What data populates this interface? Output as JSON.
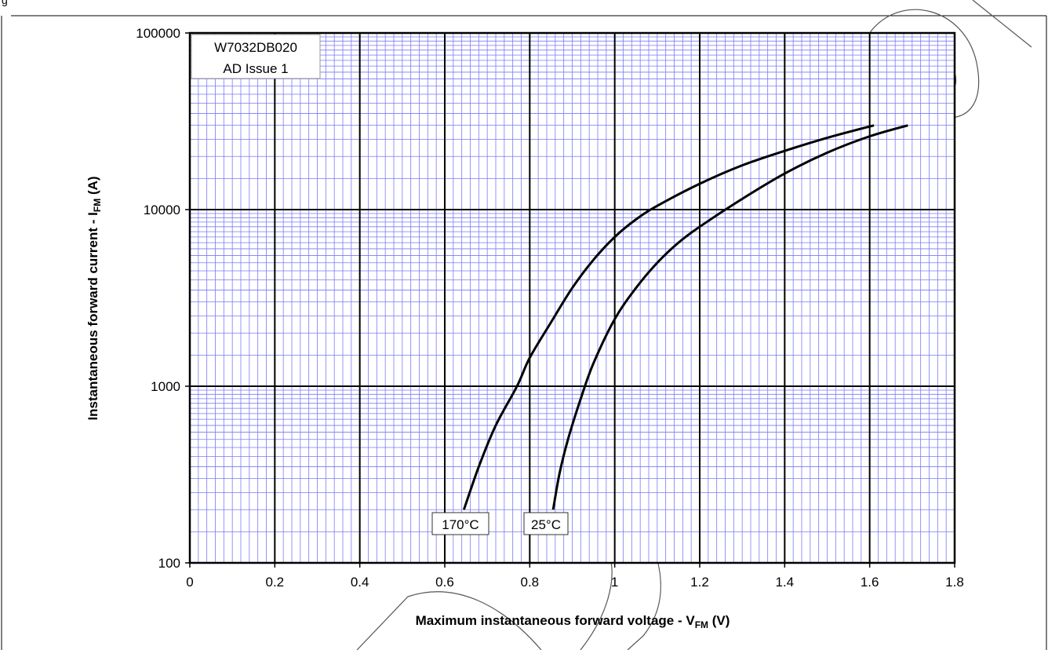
{
  "page": {
    "fragment_text": "g"
  },
  "chart_data": {
    "type": "line",
    "title": "",
    "xlabel": "Maximum instantaneous forward voltage - V",
    "xlabel_sub": "FM",
    "xlabel_unit": " (V)",
    "ylabel": "Instantaneous forward current - I",
    "ylabel_sub": "FM",
    "ylabel_unit": " (A)",
    "xlim": [
      0,
      1.8
    ],
    "ylim": [
      100,
      100000
    ],
    "yscale": "log",
    "grid": true,
    "x_ticks": [
      {
        "value": 0,
        "label": "0"
      },
      {
        "value": 0.2,
        "label": "0.2"
      },
      {
        "value": 0.4,
        "label": "0.4"
      },
      {
        "value": 0.6,
        "label": "0.6"
      },
      {
        "value": 0.8,
        "label": "0.8"
      },
      {
        "value": 1.0,
        "label": "1"
      },
      {
        "value": 1.2,
        "label": "1.2"
      },
      {
        "value": 1.4,
        "label": "1.4"
      },
      {
        "value": 1.6,
        "label": "1.6"
      },
      {
        "value": 1.8,
        "label": "1.8"
      }
    ],
    "y_ticks": [
      {
        "value": 100,
        "label": "100"
      },
      {
        "value": 1000,
        "label": "1000"
      },
      {
        "value": 10000,
        "label": "10000"
      },
      {
        "value": 100000,
        "label": "100000"
      }
    ],
    "annotation": {
      "line1": "W7032DB020",
      "line2": "AD Issue 1"
    },
    "series": [
      {
        "name": "170°C",
        "color": "#000000",
        "points": [
          [
            0.645,
            200
          ],
          [
            0.68,
            350
          ],
          [
            0.72,
            600
          ],
          [
            0.77,
            1000
          ],
          [
            0.8,
            1450
          ],
          [
            0.85,
            2300
          ],
          [
            0.9,
            3600
          ],
          [
            0.95,
            5200
          ],
          [
            1.0,
            7000
          ],
          [
            1.05,
            8800
          ],
          [
            1.1,
            10500
          ],
          [
            1.2,
            14000
          ],
          [
            1.3,
            17800
          ],
          [
            1.4,
            21500
          ],
          [
            1.5,
            25500
          ],
          [
            1.61,
            30000
          ]
        ]
      },
      {
        "name": "25°C",
        "color": "#000000",
        "points": [
          [
            0.855,
            200
          ],
          [
            0.87,
            320
          ],
          [
            0.89,
            500
          ],
          [
            0.92,
            850
          ],
          [
            0.95,
            1350
          ],
          [
            1.0,
            2400
          ],
          [
            1.05,
            3600
          ],
          [
            1.1,
            5000
          ],
          [
            1.15,
            6500
          ],
          [
            1.2,
            8000
          ],
          [
            1.3,
            11500
          ],
          [
            1.4,
            16000
          ],
          [
            1.5,
            21000
          ],
          [
            1.6,
            26000
          ],
          [
            1.69,
            30000
          ]
        ]
      }
    ]
  }
}
